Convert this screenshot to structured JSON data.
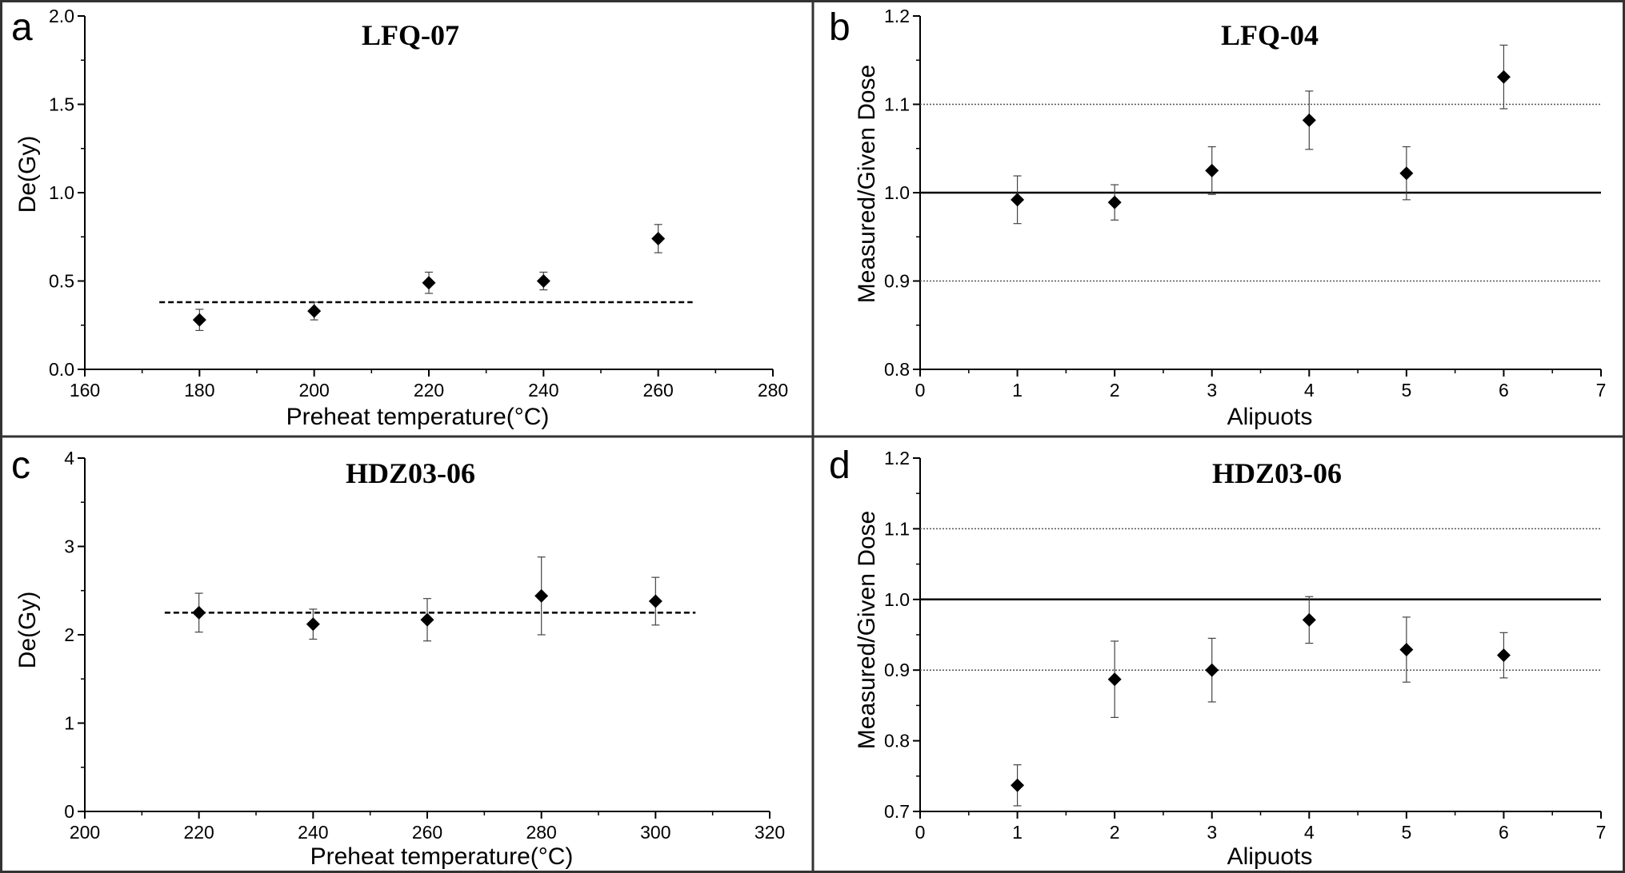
{
  "figure": {
    "border_color": "#333333",
    "marker_color": "#000000",
    "line_color": "#000000"
  },
  "chart_data": [
    {
      "panel": "a",
      "type": "scatter",
      "title": "LFQ-07",
      "xlabel": "Preheat temperature(°C)",
      "ylabel": "De(Gy)",
      "xlim": [
        160,
        280
      ],
      "ylim": [
        0.0,
        2.0
      ],
      "xticks": [
        160,
        180,
        200,
        220,
        240,
        260,
        280
      ],
      "yticks": [
        "0.0",
        "0.5",
        "1.0",
        "1.5",
        "2.0"
      ],
      "series": [
        {
          "x": [
            180,
            200,
            220,
            240,
            260
          ],
          "y": [
            0.28,
            0.33,
            0.49,
            0.5,
            0.74
          ],
          "err": [
            0.06,
            0.05,
            0.06,
            0.05,
            0.08
          ]
        }
      ],
      "reference_lines": [
        {
          "y": 0.38,
          "x_range": [
            173,
            266
          ],
          "style": "dashed"
        }
      ],
      "grid": false
    },
    {
      "panel": "b",
      "type": "scatter",
      "title": "LFQ-04",
      "xlabel": "Alipuots",
      "ylabel": "Measured/Given Dose",
      "xlim": [
        0,
        7
      ],
      "ylim": [
        0.8,
        1.2
      ],
      "xticks": [
        0,
        1,
        2,
        3,
        4,
        5,
        6,
        7
      ],
      "yticks": [
        "0.8",
        "0.9",
        "1.0",
        "1.1",
        "1.2"
      ],
      "series": [
        {
          "x": [
            1,
            2,
            3,
            4,
            5,
            6
          ],
          "y": [
            0.992,
            0.989,
            1.025,
            1.082,
            1.022,
            1.131
          ],
          "err": [
            0.027,
            0.02,
            0.027,
            0.033,
            0.03,
            0.036
          ]
        }
      ],
      "reference_lines": [
        {
          "y": 1.0,
          "x_range": [
            0,
            7
          ],
          "style": "solid"
        },
        {
          "y": 1.1,
          "x_range": [
            0,
            7
          ],
          "style": "dotted"
        },
        {
          "y": 0.9,
          "x_range": [
            0,
            7
          ],
          "style": "dotted"
        }
      ],
      "grid": false
    },
    {
      "panel": "c",
      "type": "scatter",
      "title": "HDZ03-06",
      "xlabel": "Preheat temperature(°C)",
      "ylabel": "De(Gy)",
      "xlim": [
        200,
        320
      ],
      "ylim": [
        0,
        4
      ],
      "xticks": [
        200,
        220,
        240,
        260,
        280,
        300,
        320
      ],
      "yticks": [
        "0",
        "1",
        "2",
        "3",
        "4"
      ],
      "series": [
        {
          "x": [
            220,
            240,
            260,
            280,
            300
          ],
          "y": [
            2.25,
            2.12,
            2.17,
            2.44,
            2.38
          ],
          "err": [
            0.22,
            0.17,
            0.24,
            0.44,
            0.27
          ]
        }
      ],
      "reference_lines": [
        {
          "y": 2.25,
          "x_range": [
            214,
            307
          ],
          "style": "dashed"
        }
      ],
      "grid": false
    },
    {
      "panel": "d",
      "type": "scatter",
      "title": "HDZ03-06",
      "xlabel": "Alipuots",
      "ylabel": "Measured/Given Dose",
      "xlim": [
        0,
        7
      ],
      "ylim": [
        0.7,
        1.2
      ],
      "xticks": [
        0,
        1,
        2,
        3,
        4,
        5,
        6,
        7
      ],
      "yticks": [
        "0.7",
        "0.8",
        "0.9",
        "1.0",
        "1.1",
        "1.2"
      ],
      "series": [
        {
          "x": [
            1,
            2,
            3,
            4,
            5,
            6
          ],
          "y": [
            0.737,
            0.887,
            0.9,
            0.971,
            0.929,
            0.921
          ],
          "err": [
            0.029,
            0.054,
            0.045,
            0.033,
            0.046,
            0.032
          ]
        }
      ],
      "reference_lines": [
        {
          "y": 1.0,
          "x_range": [
            0,
            7
          ],
          "style": "solid"
        },
        {
          "y": 1.1,
          "x_range": [
            0,
            7
          ],
          "style": "dotted"
        },
        {
          "y": 0.9,
          "x_range": [
            0,
            7
          ],
          "style": "dotted"
        }
      ],
      "grid": false
    }
  ]
}
